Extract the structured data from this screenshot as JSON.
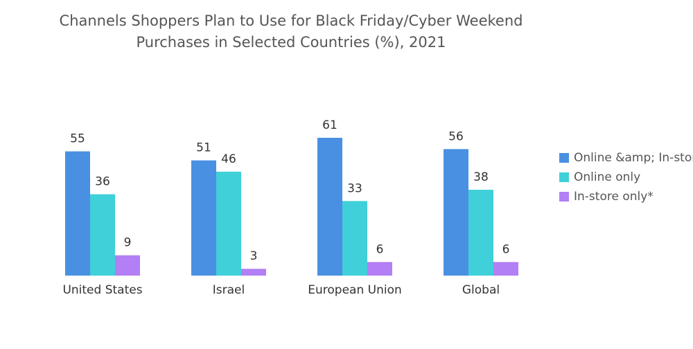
{
  "chart_data": {
    "type": "bar",
    "title": [
      "Channels Shoppers Plan to Use for Black Friday/Cyber Weekend",
      "Purchases in Selected Countries (%), 2021"
    ],
    "categories": [
      "United States",
      "Israel",
      "European Union",
      "Global"
    ],
    "series": [
      {
        "name": "Online &amp; In-store",
        "color": "#4a90e2",
        "values": [
          55,
          51,
          61,
          56
        ]
      },
      {
        "name": "Online only",
        "color": "#3fd0d9",
        "values": [
          36,
          46,
          33,
          38
        ]
      },
      {
        "name": "In-store only*",
        "color": "#b27ff4",
        "values": [
          9,
          3,
          6,
          6
        ]
      }
    ]
  }
}
